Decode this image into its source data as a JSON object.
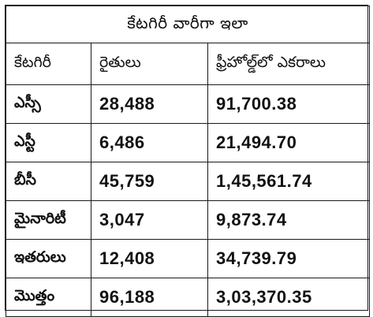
{
  "table": {
    "title": "కేటగిరీ వారీగా ఇలా",
    "headers": [
      "కేటగిరీ",
      "రైతులు",
      "ఫ్రీహోల్డ్‌లో ఎకరాలు"
    ],
    "rows": [
      {
        "category": "ఎస్సీ",
        "farmers": "28,488",
        "acres": "91,700.38"
      },
      {
        "category": "ఎస్టీ",
        "farmers": "6,486",
        "acres": "21,494.70"
      },
      {
        "category": "బీసీ",
        "farmers": "45,759",
        "acres": "1,45,561.74"
      },
      {
        "category": "మైనారిటీ",
        "farmers": "3,047",
        "acres": "9,873.74"
      },
      {
        "category": "ఇతరులు",
        "farmers": "12,408",
        "acres": "34,739.79"
      },
      {
        "category": "మొత్తం",
        "farmers": "96,188",
        "acres": "3,03,370.35"
      }
    ]
  }
}
